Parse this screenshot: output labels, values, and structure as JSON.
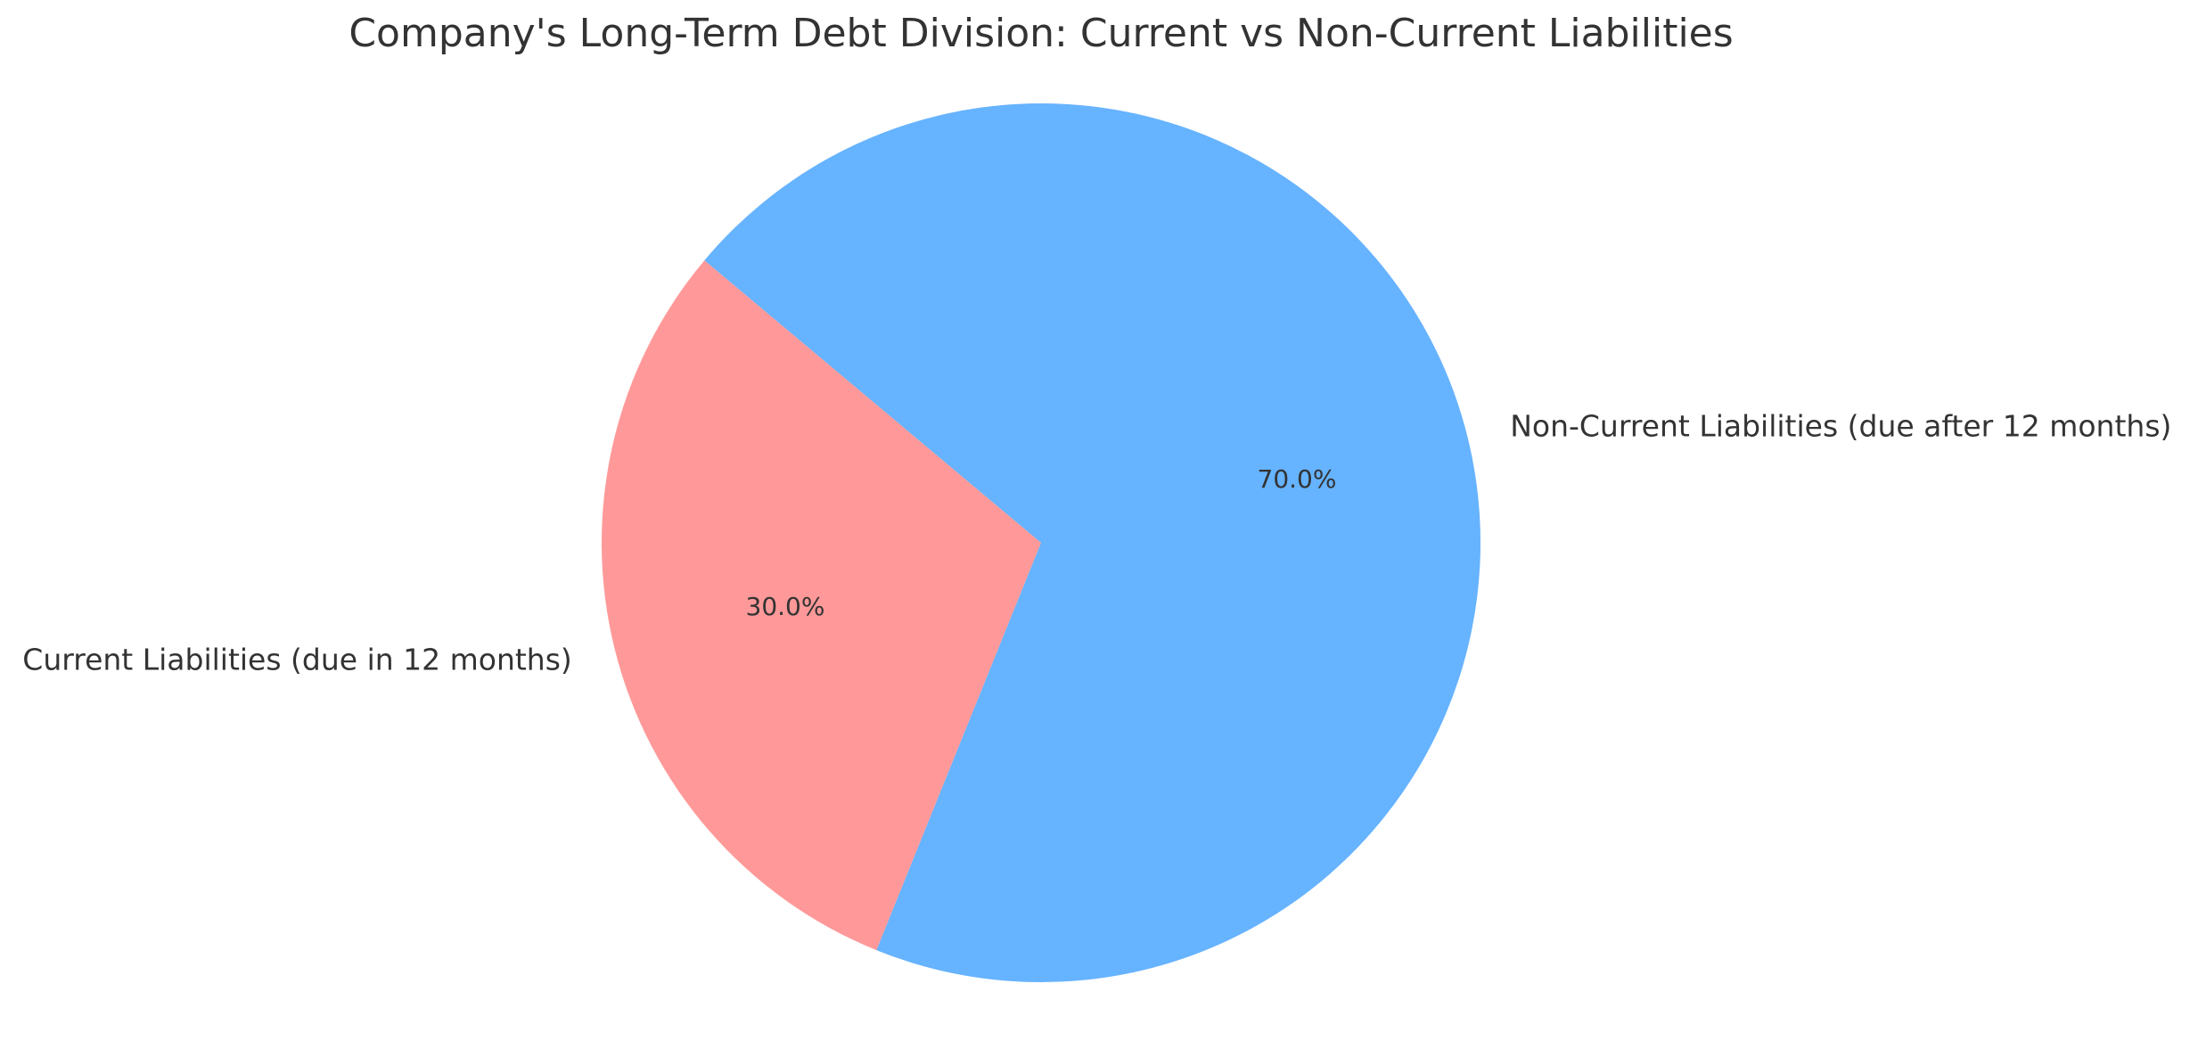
{
  "chart_data": {
    "type": "pie",
    "title": "Company's Long-Term Debt Division: Current vs Non-Current Liabilities",
    "start_angle_deg": 140,
    "direction": "counterclockwise",
    "slices": [
      {
        "label": "Current Liabilities (due in 12 months)",
        "value": 30,
        "pct_label": "30.0%",
        "color": "#ff9999"
      },
      {
        "label": "Non-Current Liabilities (due after 12 months)",
        "value": 70,
        "pct_label": "70.0%",
        "color": "#66b3ff"
      }
    ]
  }
}
